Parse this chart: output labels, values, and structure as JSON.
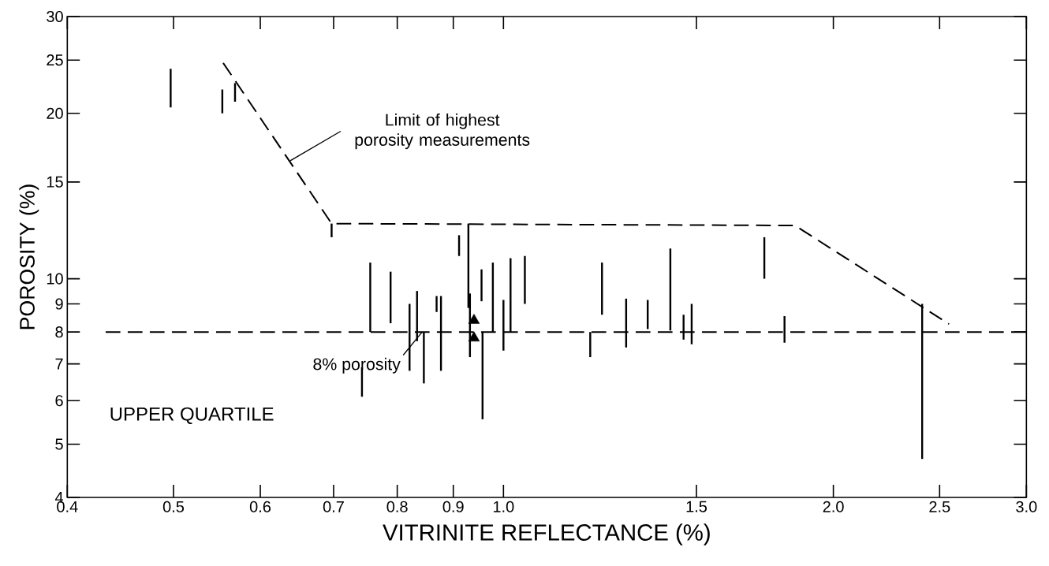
{
  "chart_data": {
    "type": "bar",
    "xlabel": "VITRINITE REFLECTANCE (%)",
    "ylabel": "POROSITY (%)",
    "log": "xy",
    "xlim": [
      0.4,
      3.0
    ],
    "ylim": [
      4,
      30
    ],
    "xticks": [
      0.4,
      0.5,
      0.6,
      0.7,
      0.8,
      0.9,
      {
        "value": 1,
        "label": "1.0"
      },
      1.5,
      {
        "value": 2,
        "label": "2.0"
      },
      2.5,
      {
        "value": 3,
        "label": "3.0"
      }
    ],
    "yticks": [
      4,
      5,
      6,
      7,
      8,
      9,
      10,
      15,
      20,
      25,
      30
    ],
    "series": [
      {
        "color": "#000000",
        "x": [
          0.497,
          0.554,
          0.569,
          0.697,
          0.743,
          0.756,
          0.789,
          0.821,
          0.834,
          0.846,
          0.869,
          0.877,
          0.911,
          0.929,
          0.932,
          0.955,
          0.957,
          0.978,
          1.0,
          1.015,
          1.046,
          1.2,
          1.23,
          1.294,
          1.354,
          1.42,
          1.46,
          1.485,
          1.73,
          1.805,
          2.41
        ],
        "base": [
          20.5,
          20.0,
          21.0,
          11.9,
          6.1,
          8.0,
          8.3,
          6.8,
          7.7,
          6.45,
          8.7,
          6.8,
          11.0,
          8.85,
          7.2,
          9.1,
          5.55,
          8.0,
          7.4,
          8.0,
          9.0,
          7.2,
          8.6,
          7.5,
          8.1,
          8.05,
          7.75,
          7.6,
          10.0,
          7.65,
          4.7
        ],
        "values": [
          3.6,
          2.1,
          1.7,
          0.7,
          0.8,
          2.7,
          2.0,
          2.2,
          1.8,
          1.55,
          0.6,
          2.5,
          1.0,
          3.75,
          2.2,
          1.3,
          2.45,
          2.7,
          1.75,
          2.9,
          2.0,
          0.8,
          2.1,
          1.7,
          1.05,
          3.3,
          0.85,
          1.4,
          1.9,
          0.9,
          4.3
        ]
      },
      {
        "type": "line",
        "color": "#000000",
        "line_style": "dashed",
        "marker": "none",
        "x": [
          0.555,
          0.697,
          1.845,
          2.55
        ],
        "values": [
          24.7,
          12.6,
          12.5,
          8.27
        ]
      },
      {
        "type": "scatter",
        "color": "#000000",
        "marker": "triangle",
        "x": [
          0.94,
          0.94
        ],
        "values": [
          8.4,
          7.8
        ]
      }
    ],
    "ref_lines": [
      {
        "axis": "y",
        "value": 8,
        "label": "8% porosity",
        "line_style": "dashed",
        "color": "#000000"
      }
    ],
    "annotations": [
      {
        "text": "Limit of highest porosity measurements",
        "x": 0.639,
        "y": 16.4
      },
      "UPPER QUARTILE"
    ]
  }
}
